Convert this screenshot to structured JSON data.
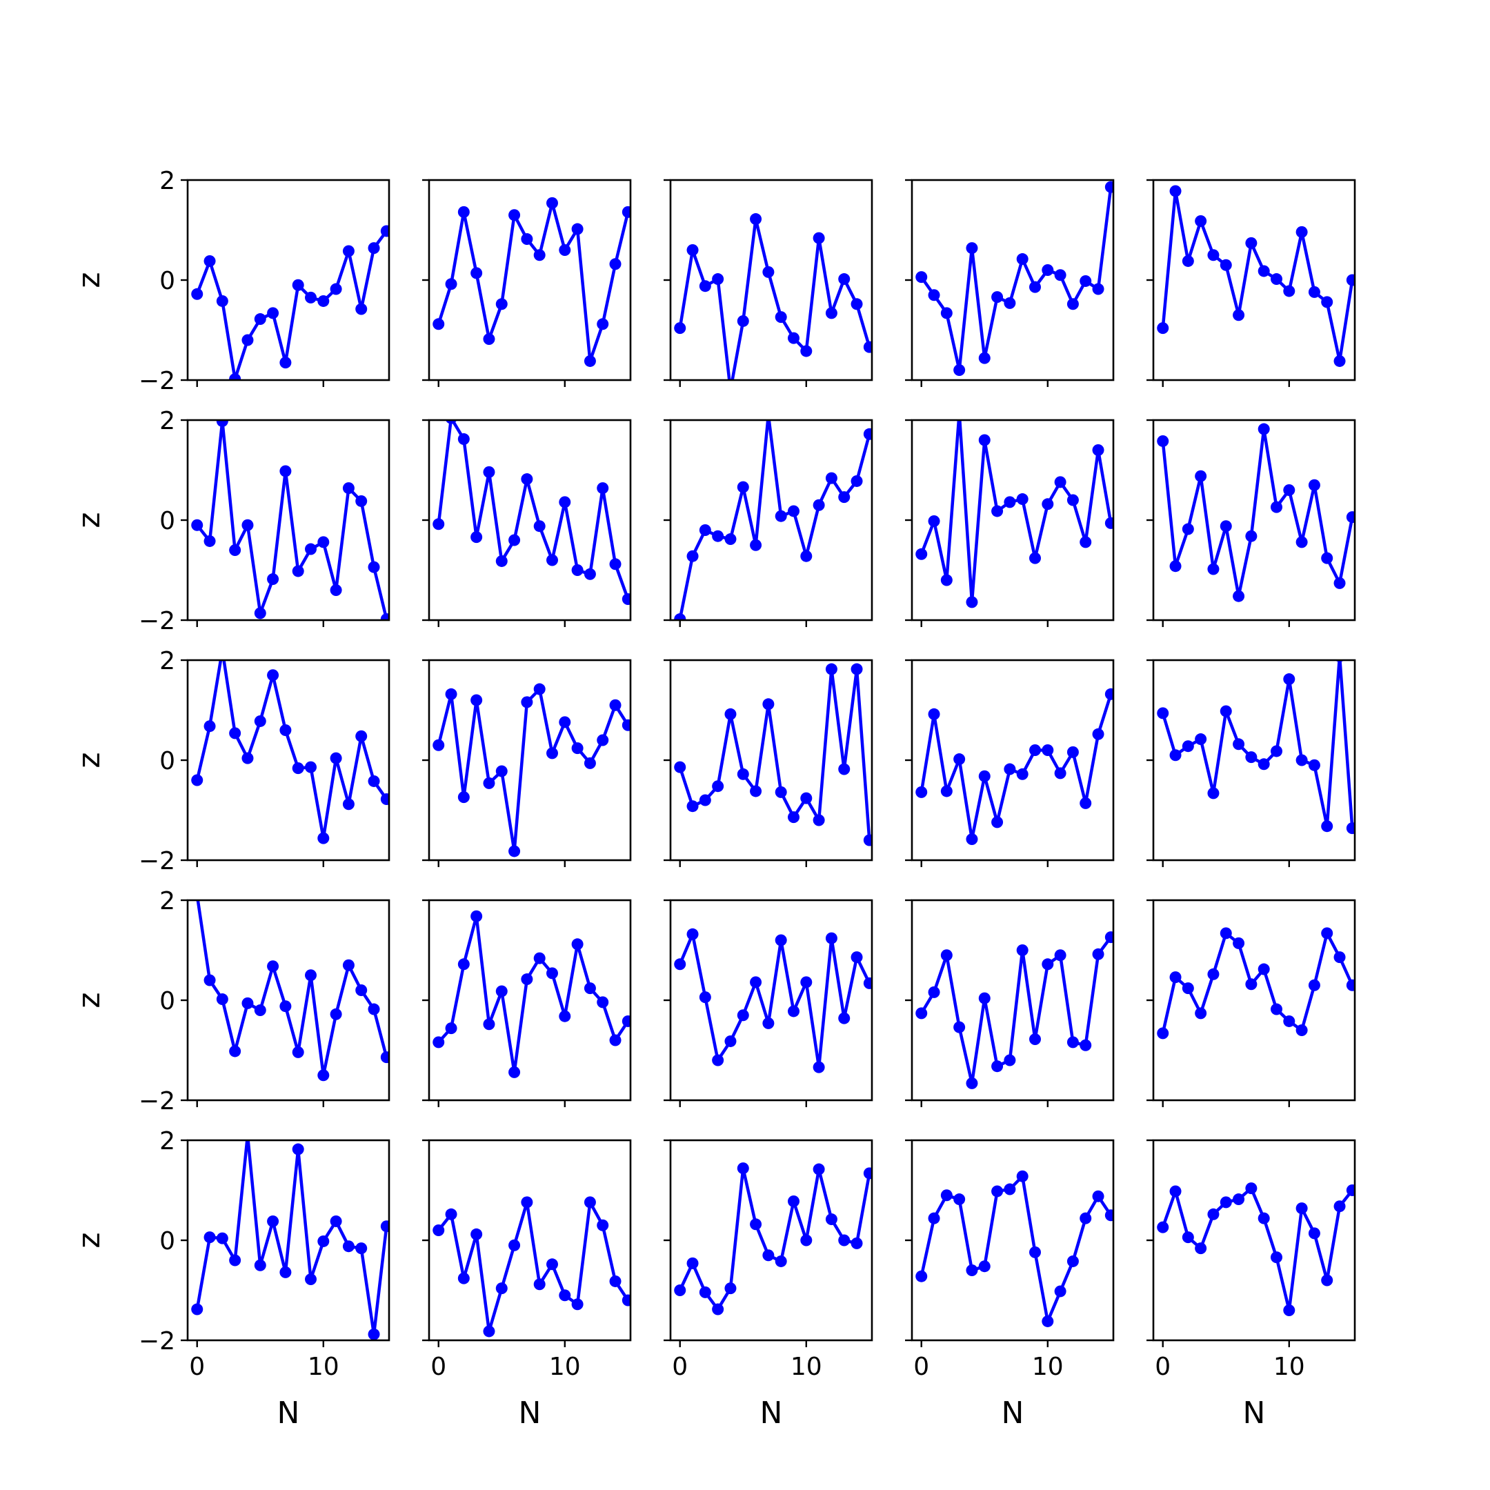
{
  "chart_data": {
    "type": "line",
    "layout": {
      "rows": 5,
      "cols": 5
    },
    "line_color": "#0000ff",
    "marker": "circle",
    "xlabel": "N",
    "ylabel": "z",
    "xlim": [
      -0.75,
      15.2
    ],
    "ylim": [
      -2,
      2
    ],
    "xticks": [
      0,
      10
    ],
    "xtick_labels": [
      "0",
      "10"
    ],
    "yticks": [
      -2,
      0,
      2
    ],
    "ytick_labels": [
      "−2",
      "0",
      "2"
    ],
    "x": [
      0,
      1,
      2,
      3,
      4,
      5,
      6,
      7,
      8,
      9,
      10,
      11,
      12,
      13,
      14,
      15
    ],
    "subplots": [
      {
        "y": [
          -0.28,
          0.38,
          -0.42,
          -1.98,
          -1.2,
          -0.78,
          -0.66,
          -1.65,
          -0.1,
          -0.35,
          -0.42,
          -0.18,
          0.58,
          -0.58,
          0.64,
          0.98
        ]
      },
      {
        "y": [
          -0.88,
          -0.08,
          1.36,
          0.14,
          -1.18,
          -0.48,
          1.3,
          0.82,
          0.5,
          1.54,
          0.6,
          1.02,
          -1.62,
          -0.88,
          0.32,
          1.36
        ]
      },
      {
        "y": [
          -0.96,
          0.6,
          -0.12,
          0.02,
          -2.2,
          -0.82,
          1.22,
          0.16,
          -0.74,
          -1.16,
          -1.42,
          0.84,
          -0.66,
          0.02,
          -0.48,
          -1.34
        ]
      },
      {
        "y": [
          0.06,
          -0.3,
          -0.66,
          -1.8,
          0.64,
          -1.56,
          -0.34,
          -0.46,
          0.42,
          -0.14,
          0.2,
          0.1,
          -0.48,
          -0.02,
          -0.18,
          1.86
        ]
      },
      {
        "y": [
          -0.96,
          1.78,
          0.38,
          1.18,
          0.5,
          0.3,
          -0.7,
          0.74,
          0.18,
          0.02,
          -0.22,
          0.96,
          -0.24,
          -0.44,
          -1.62,
          0.0
        ]
      },
      {
        "y": [
          -0.1,
          -0.42,
          1.98,
          -0.6,
          -0.1,
          -1.86,
          -1.18,
          0.98,
          -1.02,
          -0.58,
          -0.44,
          -1.4,
          0.64,
          0.38,
          -0.94,
          -1.98
        ]
      },
      {
        "y": [
          -0.08,
          2.04,
          1.62,
          -0.34,
          0.96,
          -0.82,
          -0.4,
          0.82,
          -0.12,
          -0.8,
          0.36,
          -1.0,
          -1.08,
          0.64,
          -0.88,
          -1.58
        ]
      },
      {
        "y": [
          -1.98,
          -0.72,
          -0.2,
          -0.32,
          -0.38,
          0.66,
          -0.5,
          2.1,
          0.08,
          0.18,
          -0.72,
          0.3,
          0.84,
          0.46,
          0.78,
          1.72
        ]
      },
      {
        "y": [
          -0.68,
          -0.02,
          -1.2,
          2.14,
          -1.64,
          1.6,
          0.18,
          0.36,
          0.42,
          -0.76,
          0.32,
          0.76,
          0.4,
          -0.44,
          1.4,
          -0.06
        ]
      },
      {
        "y": [
          1.58,
          -0.92,
          -0.18,
          0.88,
          -0.98,
          -0.12,
          -1.52,
          -0.32,
          1.82,
          0.26,
          0.6,
          -0.44,
          0.7,
          -0.76,
          -1.26,
          0.06
        ]
      }
    ]
  }
}
